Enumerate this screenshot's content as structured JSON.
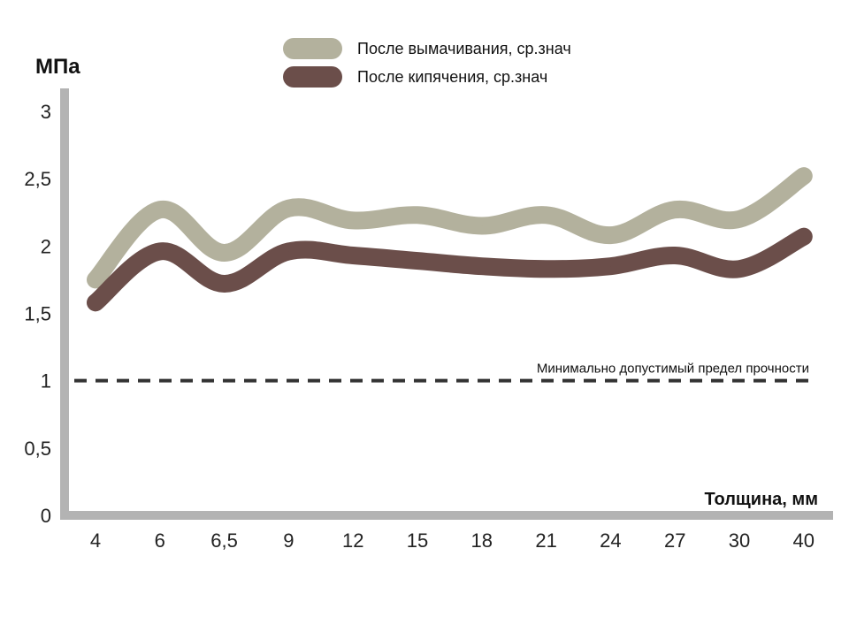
{
  "chart_data": {
    "type": "line",
    "ylabel": "МПа",
    "xlabel": "Толщина, мм",
    "categories": [
      "4",
      "6",
      "6,5",
      "9",
      "12",
      "15",
      "18",
      "21",
      "24",
      "27",
      "30",
      "40"
    ],
    "ylim": [
      0,
      3
    ],
    "yticks": [
      "0",
      "0,5",
      "1",
      "1,5",
      "2",
      "2,5",
      "3"
    ],
    "ytick_values": [
      0,
      0.5,
      1,
      1.5,
      2,
      2.5,
      3
    ],
    "series": [
      {
        "name": "После вымачивания, ср.знач",
        "color": "#b3b19d",
        "values": [
          1.75,
          2.27,
          1.95,
          2.28,
          2.19,
          2.23,
          2.15,
          2.23,
          2.08,
          2.27,
          2.2,
          2.52
        ]
      },
      {
        "name": "После кипячения, ср.знач",
        "color": "#6b4e4a",
        "values": [
          1.58,
          1.96,
          1.72,
          1.96,
          1.93,
          1.89,
          1.85,
          1.83,
          1.85,
          1.93,
          1.83,
          2.07
        ]
      }
    ],
    "reference_line": {
      "value": 1,
      "label": "Минимально допустимый предел прочности",
      "color": "#333333"
    },
    "legend": "top-center",
    "grid": false,
    "axis_color": "#b3b3b3"
  }
}
